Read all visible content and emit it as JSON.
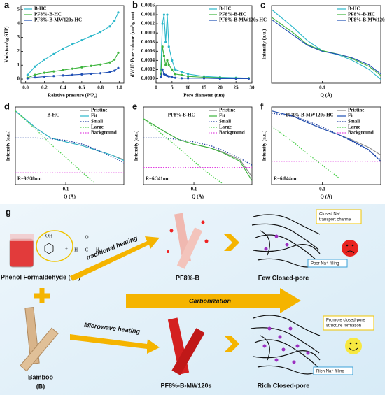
{
  "chart_data": [
    {
      "type": "line",
      "label": "a",
      "markers": true,
      "legend": "upper left",
      "xlabel": "Relative pressure (P/P₀)",
      "ylabel": "Vads (cm³/g STP)",
      "x": [
        0.02,
        0.1,
        0.2,
        0.3,
        0.4,
        0.5,
        0.6,
        0.7,
        0.8,
        0.9,
        0.95,
        0.99
      ],
      "xlim": [
        -0.05,
        1.05
      ],
      "ylim": [
        -0.3,
        5.3
      ],
      "xticks": [
        {
          "value": 0,
          "label": "0.0"
        },
        {
          "value": 0.2,
          "label": "0.2"
        },
        {
          "value": 0.4,
          "label": "0.4"
        },
        {
          "value": 0.6,
          "label": "0.6"
        },
        {
          "value": 0.8,
          "label": "0.8"
        },
        {
          "value": 1,
          "label": "1.0"
        }
      ],
      "yticks": [
        0,
        1,
        2,
        3,
        4,
        5
      ],
      "series": [
        {
          "name": "B-HC",
          "color": "#2ab7ca",
          "values": [
            0.3,
            0.9,
            1.4,
            1.8,
            2.2,
            2.5,
            2.8,
            3.1,
            3.4,
            3.8,
            4.2,
            4.8
          ]
        },
        {
          "name": "PF8%-B-HC",
          "color": "#3cb43c",
          "values": [
            0.1,
            0.3,
            0.45,
            0.55,
            0.65,
            0.75,
            0.85,
            0.95,
            1.05,
            1.2,
            1.4,
            1.9
          ]
        },
        {
          "name": "PF8%-B-MW120s-HC",
          "color": "#1f4fb4",
          "values": [
            0.05,
            0.12,
            0.18,
            0.22,
            0.26,
            0.3,
            0.34,
            0.38,
            0.42,
            0.5,
            0.6,
            0.8
          ]
        }
      ]
    },
    {
      "type": "line",
      "label": "b",
      "markers": true,
      "legend": "upper right",
      "xlabel": "Pore diameter (nm)",
      "ylabel": "dV/dD Pore volume (cm³/g nm)",
      "x": [
        1.5,
        2,
        2.5,
        3,
        3.5,
        4,
        5,
        6,
        8,
        10,
        15,
        20,
        25,
        29
      ],
      "xlim": [
        0,
        30
      ],
      "ylim": [
        -0.0001,
        0.0016
      ],
      "xticks": [
        0,
        5,
        10,
        15,
        20,
        25,
        30
      ],
      "yticks": [
        {
          "value": 0,
          "label": "0.0000"
        },
        {
          "value": 0.0002,
          "label": "0.0002"
        },
        {
          "value": 0.0004,
          "label": "0.0004"
        },
        {
          "value": 0.0006,
          "label": "0.0006"
        },
        {
          "value": 0.0008,
          "label": "0.0008"
        },
        {
          "value": 0.001,
          "label": "0.0010"
        },
        {
          "value": 0.0012,
          "label": "0.0012"
        },
        {
          "value": 0.0014,
          "label": "0.0014"
        },
        {
          "value": 0.0016,
          "label": "0.0016"
        }
      ],
      "series": [
        {
          "name": "B-HC",
          "color": "#2ab7ca",
          "values": [
            0.0002,
            0.0012,
            0.0014,
            0.0008,
            0.0014,
            0.0007,
            0.0004,
            0.0002,
            0.00015,
            0.0001,
            5e-05,
            3e-05,
            2e-05,
            1e-05
          ]
        },
        {
          "name": "PF8%-B-HC",
          "color": "#3cb43c",
          "values": [
            0.0001,
            0.0007,
            0.0005,
            0.0003,
            0.0004,
            0.0003,
            0.0002,
            0.0001,
            8e-05,
            5e-05,
            3e-05,
            2e-05,
            1e-05,
            1e-05
          ]
        },
        {
          "name": "PF8%-B-MW120s-HC",
          "color": "#1f4fb4",
          "values": [
            3e-05,
            0.0002,
            0.0001,
            8e-05,
            6e-05,
            5e-05,
            3e-05,
            2e-05,
            1e-05,
            1e-05,
            1e-05,
            0,
            0,
            0
          ]
        }
      ]
    },
    {
      "type": "line",
      "label": "c",
      "log_x": true,
      "legend": "upper right",
      "xlabel": "Q (Å)",
      "ylabel": "Intensity (a.u.)",
      "x": [
        0.03,
        0.05,
        0.07,
        0.1,
        0.15,
        0.2,
        0.3,
        0.4
      ],
      "xlim": [
        0.03,
        0.4
      ],
      "ylim": [
        0,
        1
      ],
      "xticks": [
        0.1
      ],
      "series": [
        {
          "name": "B-HC",
          "color": "#2ab7ca",
          "values": [
            0.95,
            0.72,
            0.55,
            0.42,
            0.36,
            0.3,
            0.18,
            0.05
          ]
        },
        {
          "name": "PF8%-B-HC",
          "color": "#3cb43c",
          "values": [
            0.85,
            0.65,
            0.5,
            0.42,
            0.37,
            0.32,
            0.22,
            0.1
          ]
        },
        {
          "name": "PF8%-B-MW120s-HC",
          "color": "#1f4fb4",
          "values": [
            0.82,
            0.62,
            0.49,
            0.41,
            0.37,
            0.33,
            0.24,
            0.12
          ]
        }
      ]
    },
    {
      "type": "line",
      "label": "d",
      "log_x": true,
      "legend": "upper right",
      "inset_title": "B-HC",
      "annotation": "R=9.938nm",
      "xlabel": "Q (Å)",
      "ylabel": "Intensity (a.u.)",
      "x": [
        0.03,
        0.05,
        0.07,
        0.1,
        0.15,
        0.2,
        0.3,
        0.4
      ],
      "xlim": [
        0.03,
        0.4
      ],
      "ylim": [
        0,
        1
      ],
      "xticks": [
        0.1
      ],
      "series": [
        {
          "name": "Pristine",
          "color": "#888888",
          "values": [
            0.95,
            0.72,
            0.6,
            0.55,
            0.5,
            0.45,
            0.38,
            0.32
          ]
        },
        {
          "name": "Fit",
          "color": "#2ab7ca",
          "values": [
            0.95,
            0.72,
            0.6,
            0.55,
            0.5,
            0.45,
            0.38,
            0.31
          ]
        },
        {
          "name": "Small",
          "color": "#1f3fa0",
          "dash": true,
          "values": [
            0.6,
            0.6,
            0.59,
            0.57,
            0.52,
            0.46,
            0.36,
            0.28
          ]
        },
        {
          "name": "Large",
          "color": "#4cd04c",
          "dash": true,
          "values": [
            0.95,
            0.7,
            0.52,
            0.35,
            0.15,
            0.02,
            null,
            null
          ]
        },
        {
          "name": "Background",
          "color": "#e040e0",
          "dash": true,
          "values": [
            0.15,
            0.15,
            0.15,
            0.15,
            0.15,
            0.15,
            0.15,
            0.15
          ]
        }
      ]
    },
    {
      "type": "line",
      "label": "e",
      "log_x": true,
      "legend": "upper right",
      "inset_title": "PF8%-B-HC",
      "annotation": "R=6.341nm",
      "xlabel": "Q (Å)",
      "ylabel": "Intensity (a.u.)",
      "x": [
        0.03,
        0.05,
        0.07,
        0.1,
        0.15,
        0.2,
        0.3,
        0.4
      ],
      "xlim": [
        0.03,
        0.4
      ],
      "ylim": [
        0,
        1
      ],
      "xticks": [
        0.1
      ],
      "series": [
        {
          "name": "Pristine",
          "color": "#888888",
          "values": [
            0.85,
            0.68,
            0.58,
            0.52,
            0.47,
            0.42,
            0.32,
            0.1
          ]
        },
        {
          "name": "Fit",
          "color": "#3cb43c",
          "values": [
            0.85,
            0.68,
            0.58,
            0.52,
            0.47,
            0.41,
            0.3,
            0.05
          ]
        },
        {
          "name": "Small",
          "color": "#1f3fa0",
          "dash": true,
          "values": [
            0.6,
            0.6,
            0.58,
            0.55,
            0.5,
            0.44,
            0.34,
            0.25
          ]
        },
        {
          "name": "Large",
          "color": "#4cd04c",
          "dash": true,
          "values": [
            0.85,
            0.62,
            0.47,
            0.3,
            0.12,
            0.01,
            null,
            null
          ]
        },
        {
          "name": "Background",
          "color": "#e040e0",
          "dash": true,
          "values": [
            0.22,
            0.22,
            0.22,
            0.22,
            0.22,
            0.22,
            0.22,
            0.22
          ]
        }
      ]
    },
    {
      "type": "line",
      "label": "f",
      "log_x": true,
      "legend": "upper right",
      "inset_title": "PF8%-B-MW120s-HC",
      "annotation": "R=6.844nm",
      "xlabel": "Q (Å)",
      "ylabel": "Intensity (a.u.)",
      "x": [
        0.03,
        0.05,
        0.07,
        0.1,
        0.15,
        0.2,
        0.3,
        0.4
      ],
      "xlim": [
        0.03,
        0.4
      ],
      "ylim": [
        0,
        1
      ],
      "xticks": [
        0.1
      ],
      "series": [
        {
          "name": "Pristine",
          "color": "#888888",
          "values": [
            0.95,
            0.88,
            0.8,
            0.72,
            0.64,
            0.58,
            0.48,
            0.38
          ]
        },
        {
          "name": "Fit",
          "color": "#1f4fb4",
          "values": [
            0.95,
            0.88,
            0.8,
            0.72,
            0.64,
            0.57,
            0.45,
            0.3
          ]
        },
        {
          "name": "Small",
          "color": "#1f3fa0",
          "dash": true,
          "values": [
            0.92,
            0.88,
            0.82,
            0.74,
            0.64,
            0.56,
            0.44,
            0.32
          ]
        },
        {
          "name": "Large",
          "color": "#4cd04c",
          "dash": true,
          "values": [
            0.75,
            0.55,
            0.4,
            0.25,
            0.08,
            null,
            null,
            null
          ]
        },
        {
          "name": "Background",
          "color": "#e040e0",
          "dash": true,
          "values": [
            0.3,
            0.3,
            0.3,
            0.3,
            0.3,
            0.3,
            0.3,
            0.3
          ]
        }
      ]
    }
  ],
  "diagram": {
    "label": "g",
    "pf": "Phenol Formaldehyde (PF)",
    "oh": "OH",
    "plus": "+",
    "o": "O",
    "hch": "H — C — H",
    "bamboo": "Bamboo",
    "b": "(B)",
    "traditional": "traditional heating",
    "microwave": "Microwave heating",
    "pf8b": "PF8%-B",
    "pf8mw": "PF8%-B-MW120s",
    "carbonization": "Carbonization",
    "few": "Few Closed-pore",
    "rich": "Rich Closed-pore",
    "closed1": "Closed Na⁺",
    "closed2": "transport channel",
    "poor": "Poor Na⁺ filling",
    "promote1": "Promote closed-pore",
    "promote2": "structure formation",
    "richfill": "Rich Na⁺ filling"
  }
}
